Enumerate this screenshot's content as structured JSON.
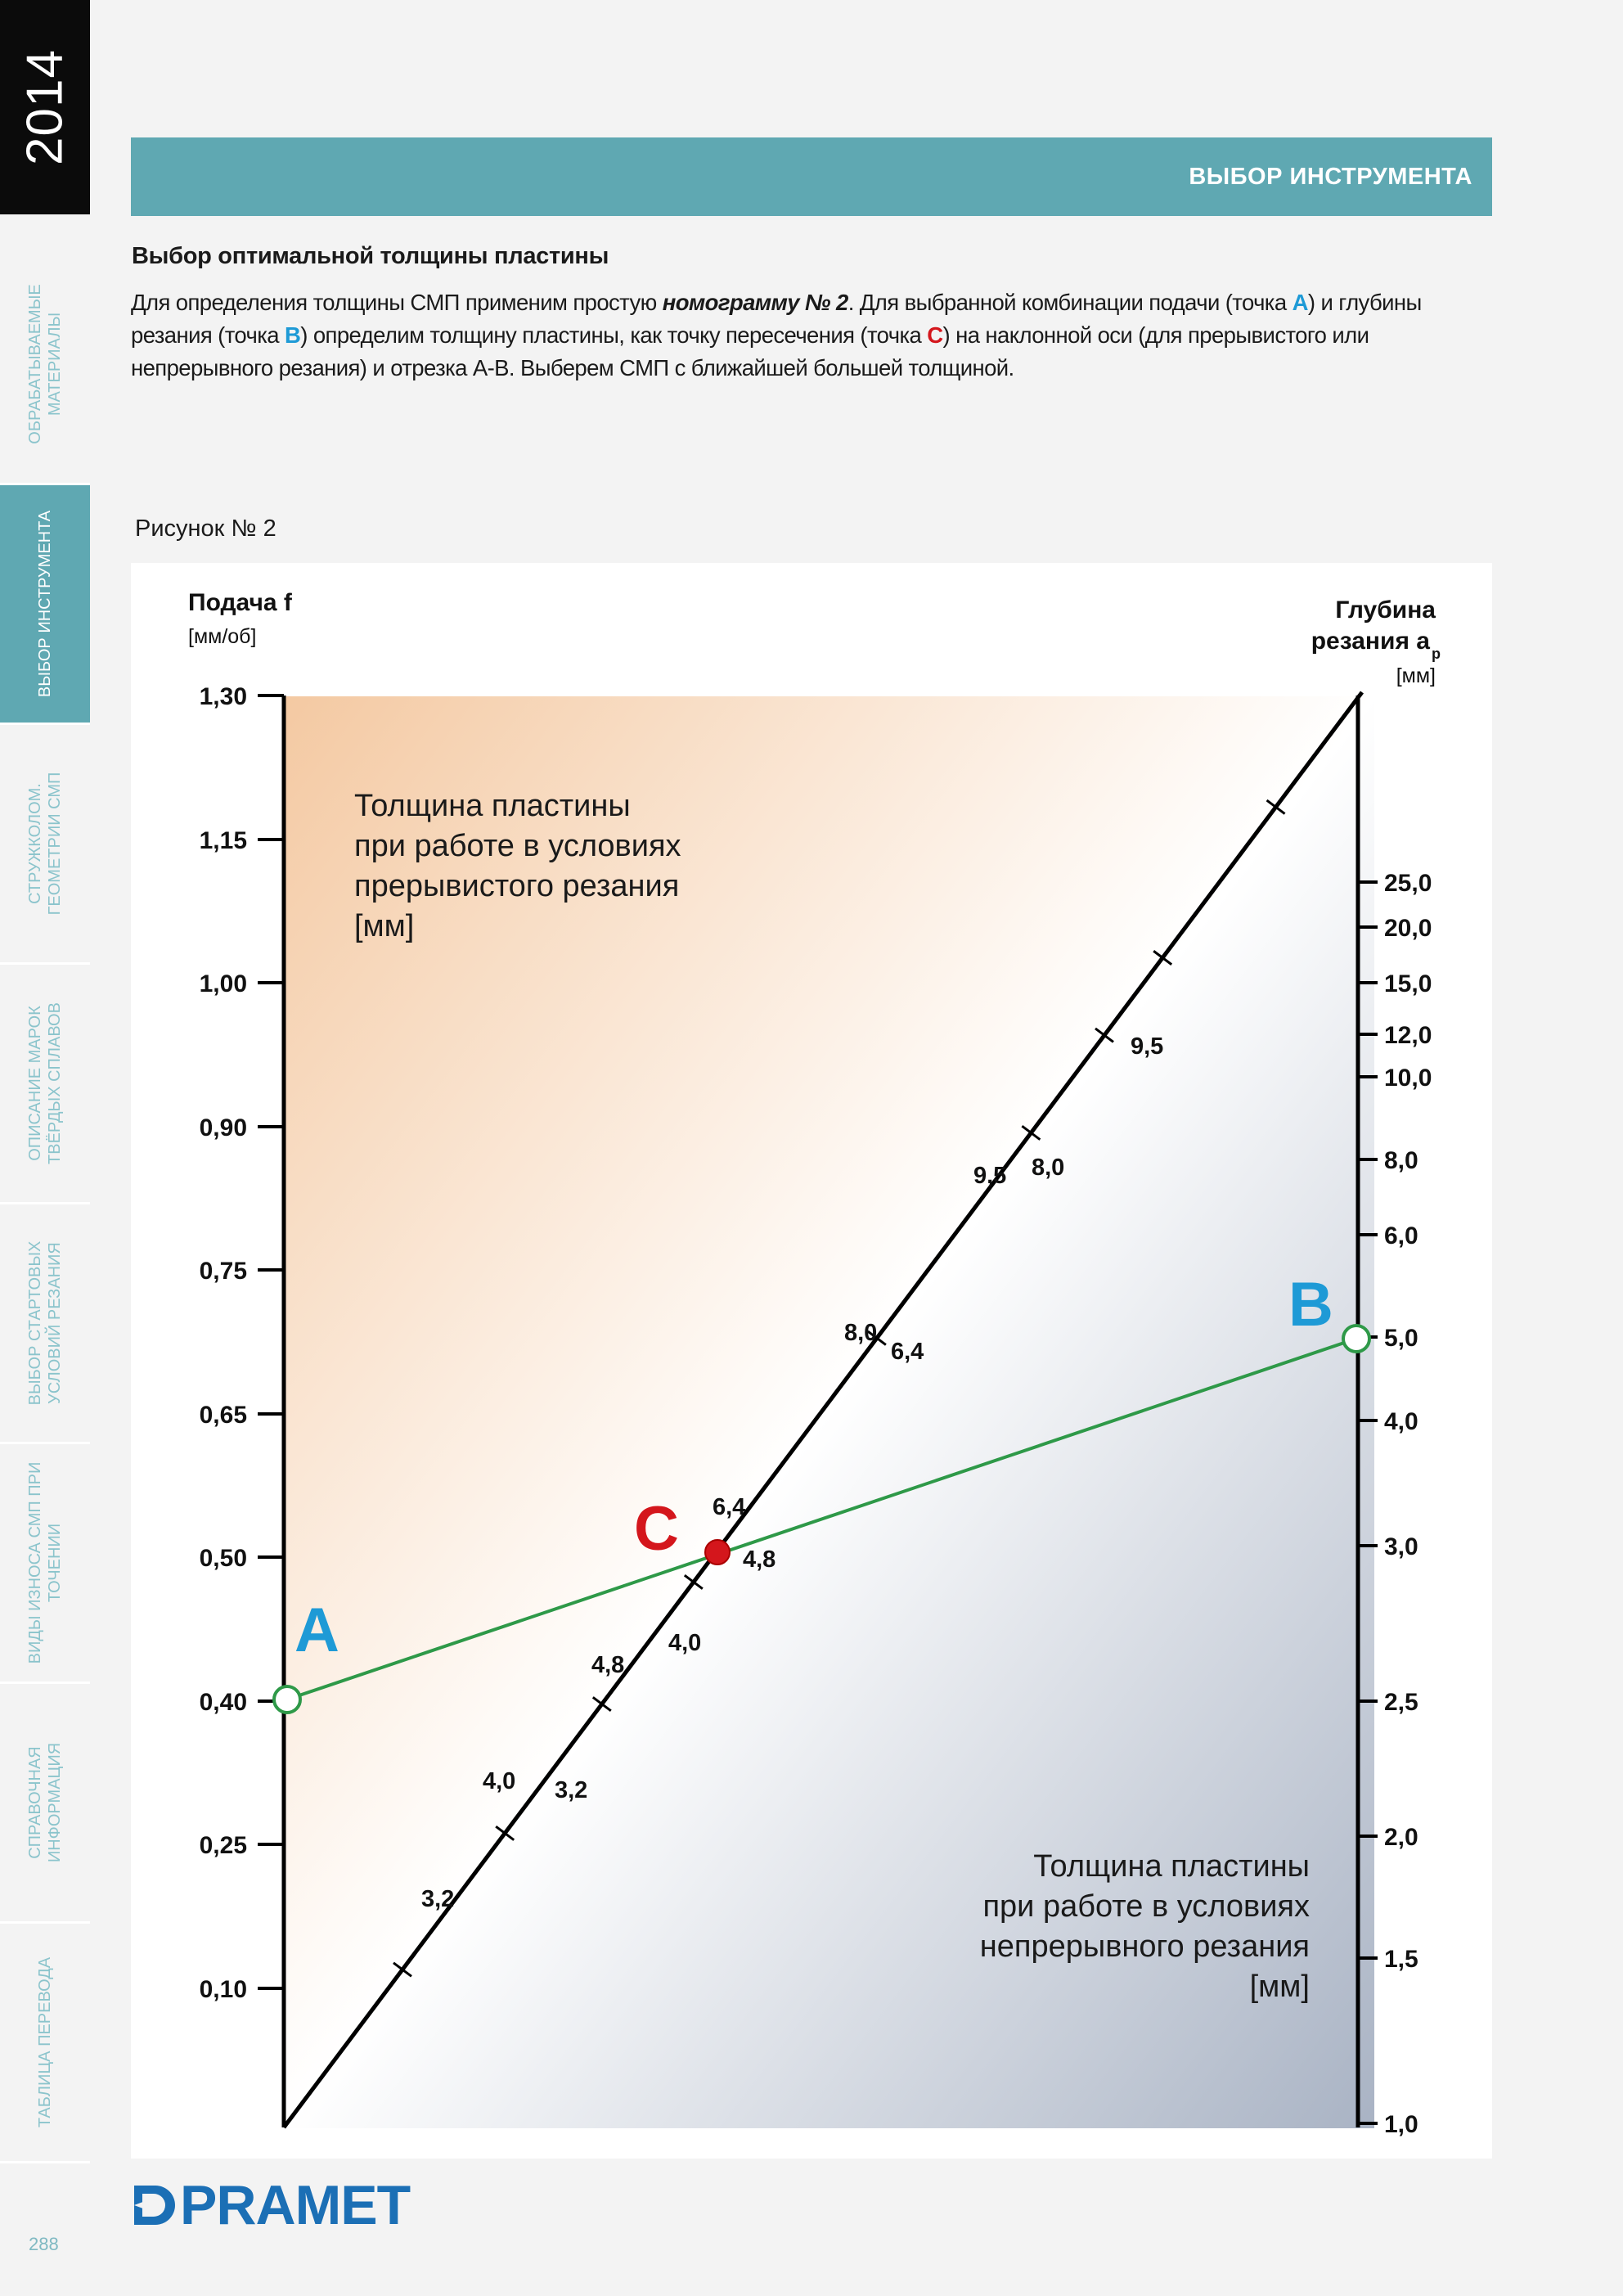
{
  "sidebar": {
    "year": "2014",
    "tabs": [
      {
        "label": "ОБРАБАТЫВАЕМЫЕ МАТЕРИАЛЫ",
        "active": false
      },
      {
        "label": "ВЫБОР ИНСТРУМЕНТА",
        "active": true
      },
      {
        "label": "СТРУЖКОЛОМ. ГЕОМЕТРИИ СМП",
        "active": false
      },
      {
        "label": "ОПИСАНИЕ МАРОК ТВЁРДЫХ СПЛАВОВ",
        "active": false
      },
      {
        "label": "ВЫБОР СТАРТОВЫХ УСЛОВИЙ РЕЗАНИЯ",
        "active": false
      },
      {
        "label": "ВИДЫ ИЗНОСА СМП ПРИ ТОЧЕНИИ",
        "active": false
      },
      {
        "label": "СПРАВОЧНАЯ ИНФОРМАЦИЯ",
        "active": false
      },
      {
        "label": "ТАБЛИЦА ПЕРЕВОДА",
        "active": false
      }
    ],
    "page_number": "288"
  },
  "header": {
    "title": "ВЫБОР ИНСТРУМЕНТА"
  },
  "section": {
    "title": "Выбор оптимальной толщины пластины",
    "intro": {
      "p1": "Для определения толщины СМП применим простую ",
      "emph": "номограмму № 2",
      "p2": ". Для выбранной комбинации подачи (точка ",
      "pointA": "A",
      "p3": ") и глубины резания (точка ",
      "pointB": "B",
      "p4": ") определим толщину пластины, как точку пересечения (точка ",
      "pointC": "C",
      "p5": ") на наклонной оси (для прерывистого или  непрерывного резания) и отрезка A-B. Выберем СМП с ближайшей большей толщиной."
    },
    "figure_caption": "Рисунок № 2"
  },
  "chart_data": {
    "type": "nomogram",
    "left_axis": {
      "title": "Подача f",
      "unit": "[мм/об]",
      "ticks": [
        "1,30",
        "1,15",
        "1,00",
        "0,90",
        "0,75",
        "0,65",
        "0,50",
        "0,40",
        "0,25",
        "0,10"
      ]
    },
    "right_axis": {
      "title_line1": "Глубина",
      "title_line2": "резания a",
      "title_sub": "p",
      "unit": "[мм]",
      "scale": "log",
      "range": [
        1.0,
        25.0
      ],
      "ticks": [
        "25,0",
        "20,0",
        "15,0",
        "12,0",
        "10,0",
        "8,0",
        "6,0",
        "5,0",
        "4,0",
        "3,0",
        "2,5",
        "2,0",
        "1,5",
        "1,0"
      ]
    },
    "diagonal_axis": {
      "interrupted_labels": [
        "3,2",
        "4,0",
        "4,8",
        "6,4",
        "8,0",
        "9,5"
      ],
      "continuous_labels": [
        "3,2",
        "4,0",
        "4,8",
        "6,4",
        "8,0",
        "9,5"
      ]
    },
    "regions": {
      "interrupted": [
        "Толщина пластины",
        "при работе в условиях",
        "прерывистого резания",
        "[мм]"
      ],
      "continuous": [
        "Толщина пластины",
        "при работе в условиях",
        "непрерывного резания",
        "[мм]"
      ]
    },
    "points": {
      "A": {
        "label": "A",
        "feed": "0,40"
      },
      "B": {
        "label": "B",
        "depth": "5,0"
      },
      "C": {
        "label": "C"
      }
    },
    "colors": {
      "line": "#2e9948",
      "pointA": "#1e9ad6",
      "pointB": "#1e9ad6",
      "pointC": "#d4161c",
      "gradient_top": "#f4c9a2",
      "gradient_bottom": "#a9b3c4"
    }
  },
  "footer": {
    "brand": "PRAMET"
  }
}
